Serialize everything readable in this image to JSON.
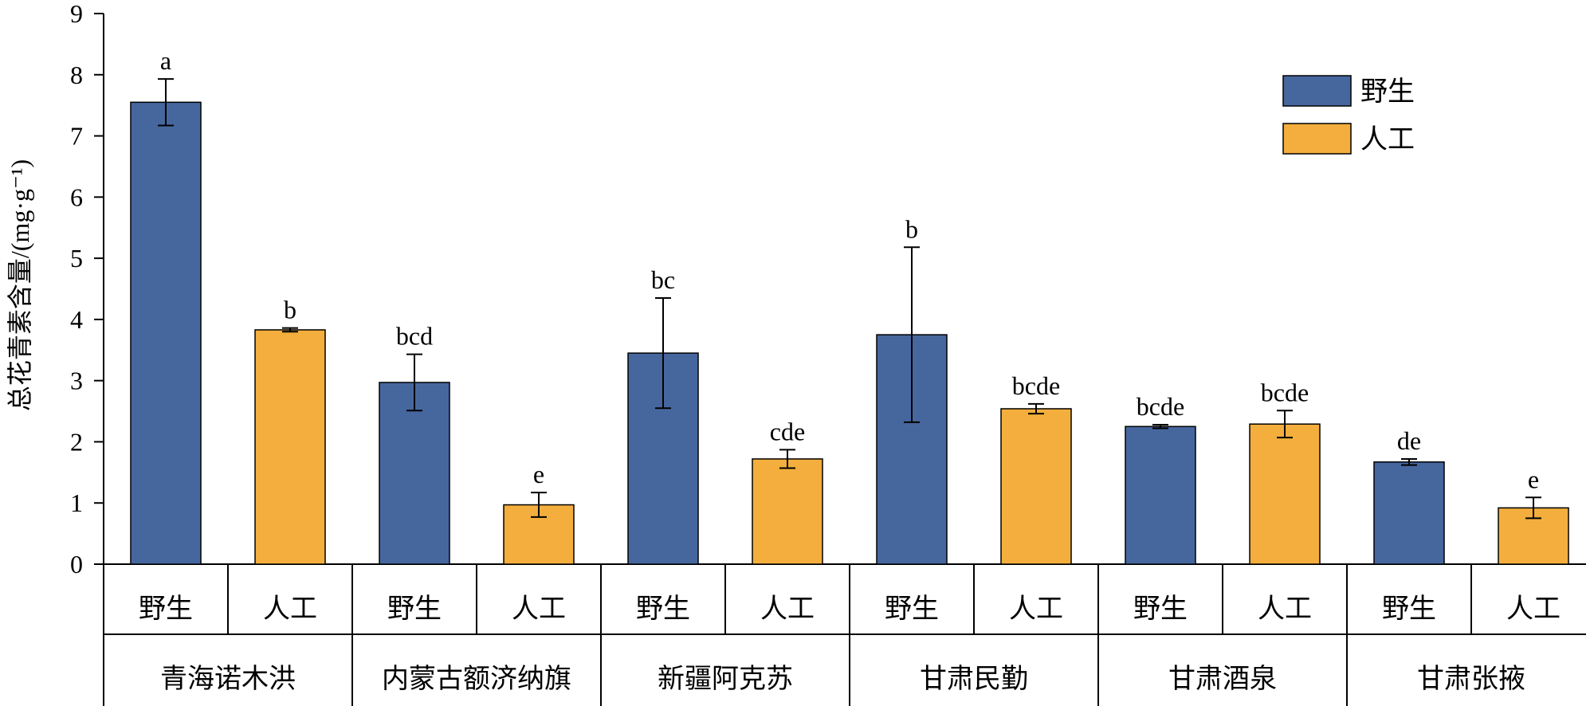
{
  "chart_data": {
    "type": "bar",
    "ylabel": "总花青素含量/(mg·g⁻¹)",
    "ylim": [
      0,
      9
    ],
    "yticks": [
      0,
      1,
      2,
      3,
      4,
      5,
      6,
      7,
      8,
      9
    ],
    "legend_position": "top-right",
    "regions": [
      "青海诺木洪",
      "内蒙古额济纳旗",
      "新疆阿克苏",
      "甘肃民勤",
      "甘肃酒泉",
      "甘肃张掖"
    ],
    "subcategories": [
      "野生",
      "人工"
    ],
    "series": [
      {
        "name": "野生",
        "color": "#46679e",
        "values": [
          7.55,
          2.97,
          3.45,
          3.75,
          2.25,
          1.67
        ],
        "errors": [
          0.38,
          0.46,
          0.9,
          1.43,
          0.03,
          0.05
        ],
        "labels": [
          "a",
          "bcd",
          "bc",
          "b",
          "bcde",
          "de"
        ]
      },
      {
        "name": "人工",
        "color": "#f3ae3d",
        "values": [
          3.83,
          0.97,
          1.72,
          2.54,
          2.29,
          0.92
        ],
        "errors": [
          0.03,
          0.2,
          0.15,
          0.08,
          0.22,
          0.17
        ],
        "labels": [
          "b",
          "e",
          "cde",
          "bcde",
          "bcde",
          "e"
        ]
      }
    ]
  }
}
